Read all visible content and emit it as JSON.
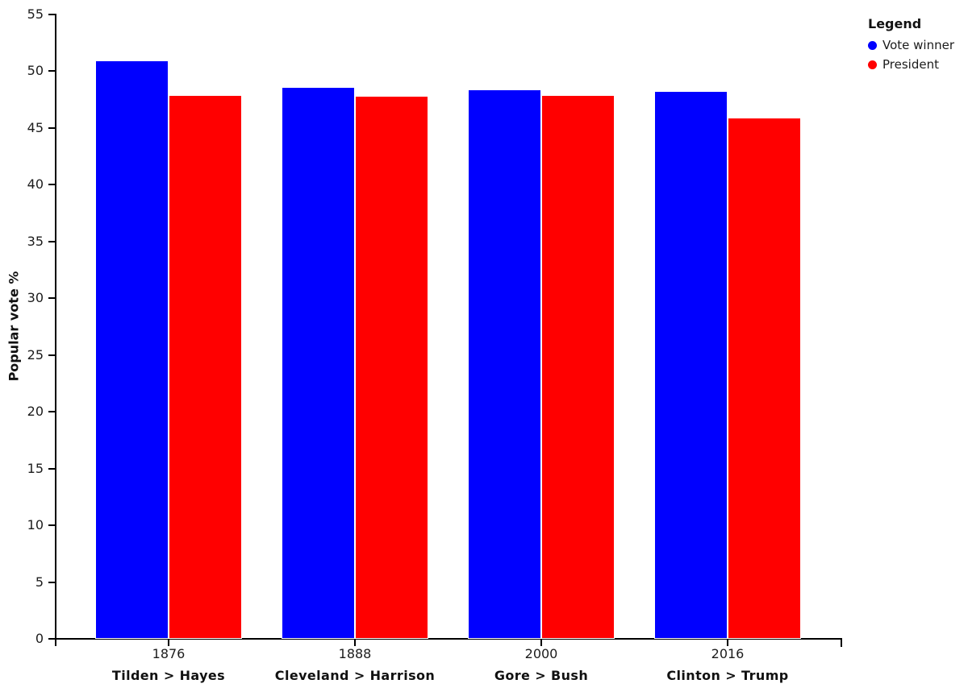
{
  "chart_data": {
    "type": "bar",
    "title": "",
    "xlabel": "",
    "ylabel": "Popular vote %",
    "ylim": [
      0,
      55
    ],
    "yticks": [
      0,
      5,
      10,
      15,
      20,
      25,
      30,
      35,
      40,
      45,
      50,
      55
    ],
    "grid": false,
    "categories": [
      "1876",
      "1888",
      "2000",
      "2016"
    ],
    "category_sublabels": [
      "Tilden > Hayes",
      "Cleveland > Harrison",
      "Gore > Bush",
      "Clinton > Trump"
    ],
    "series": [
      {
        "name": "Vote winner",
        "color": "#0000ff",
        "values": [
          50.9,
          48.6,
          48.4,
          48.2
        ]
      },
      {
        "name": "President",
        "color": "#ff0000",
        "values": [
          47.9,
          47.8,
          47.9,
          45.9
        ]
      }
    ],
    "legend": {
      "title": "Legend",
      "position": "top-right"
    },
    "colors": {
      "axis": "#000000",
      "bar_outline": "#ffffff",
      "text": "#1c1c1c"
    }
  }
}
